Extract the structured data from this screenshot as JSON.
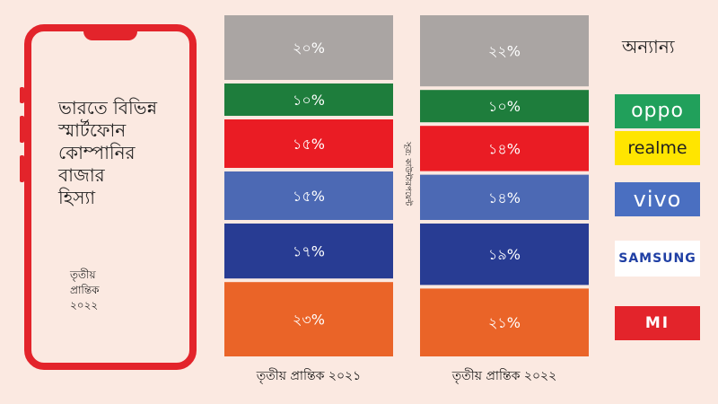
{
  "panel": {
    "title_lines": [
      "ভারতে বিভিন্ন",
      "স্মার্টফোন",
      "কোম্পানির",
      "বাজার",
      "হিস্যা"
    ],
    "date_lines": [
      "তৃতীয়",
      "প্রান্তিক",
      "২০২২"
    ],
    "frame_color": "#e3242b"
  },
  "source": "সূত্র: কাউন্টারপয়েন্ট",
  "brands": {
    "other": "অন্যান্য",
    "oppo": "oppo",
    "realme": "realme",
    "vivo": "vivo",
    "samsung": "SAMSUNG",
    "mi": "MI"
  },
  "chart_data": {
    "type": "bar",
    "stacked": true,
    "categories": [
      "তৃতীয় প্রান্তিক ২০২১",
      "তৃতীয় প্রান্তিক ২০২২"
    ],
    "series": [
      {
        "name": "অন্যান্য",
        "color": "#aaa5a3",
        "values": [
          20,
          22
        ],
        "labels": [
          "২০%",
          "২২%"
        ]
      },
      {
        "name": "oppo",
        "color": "#1e7d3c",
        "values": [
          10,
          10
        ],
        "labels": [
          "১০%",
          "১০%"
        ]
      },
      {
        "name": "realme",
        "color": "#ea1c24",
        "values": [
          15,
          14
        ],
        "labels": [
          "১৫%",
          "১৪%"
        ]
      },
      {
        "name": "vivo",
        "color": "#4c69b4",
        "values": [
          15,
          14
        ],
        "labels": [
          "১৫%",
          "১৪%"
        ]
      },
      {
        "name": "SAMSUNG",
        "color": "#283c93",
        "values": [
          17,
          19
        ],
        "labels": [
          "১৭%",
          "১৯%"
        ]
      },
      {
        "name": "MI",
        "color": "#ea6428",
        "values": [
          23,
          21
        ],
        "labels": [
          "২৩%",
          "২১%"
        ]
      }
    ]
  }
}
